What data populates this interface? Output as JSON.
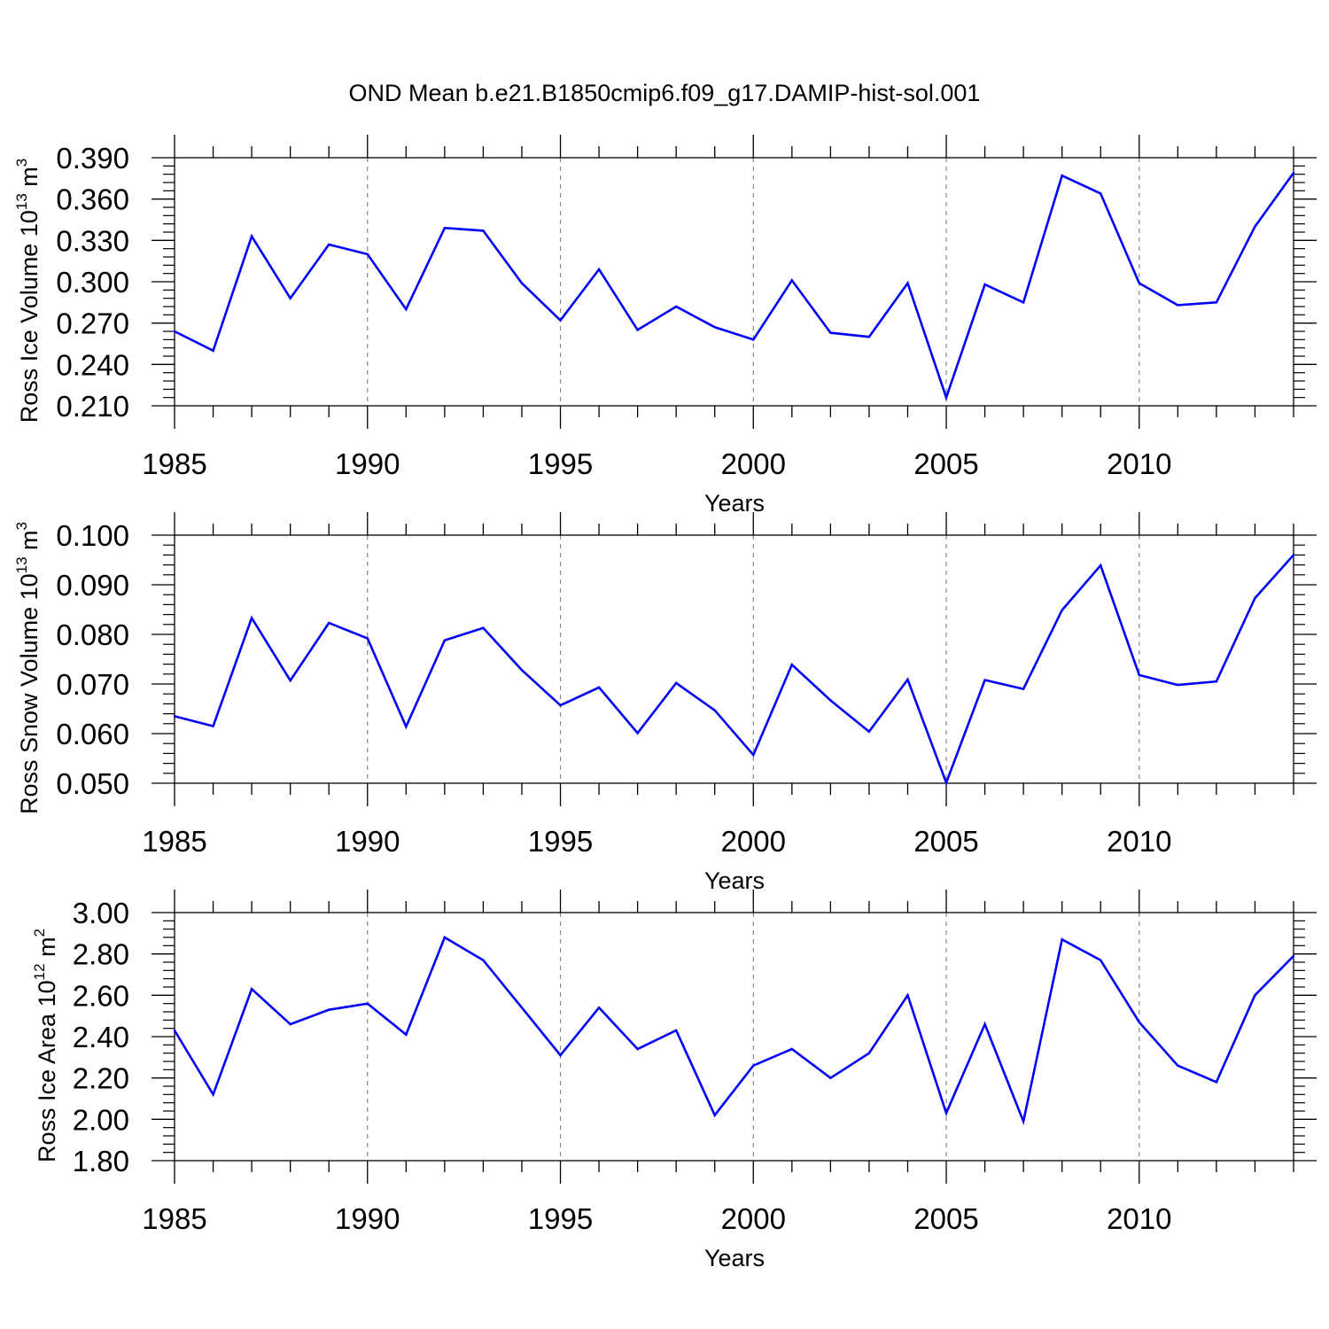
{
  "title": "OND Mean b.e21.B1850cmip6.f09_g17.DAMIP-hist-sol.001",
  "chart_data": [
    {
      "type": "line",
      "title": "OND Mean b.e21.B1850cmip6.f09_g17.DAMIP-hist-sol.001",
      "xlabel": "Years",
      "ylabel": "Ross Ice Volume 10",
      "ylabel_exp": "13",
      "ylabel_unit": " m",
      "ylabel_unit_exp": "3",
      "xlim": [
        1985,
        2014
      ],
      "ylim": [
        0.21,
        0.39
      ],
      "x_ticks": [
        1985,
        1990,
        1995,
        2000,
        2005,
        2010
      ],
      "x_tick_labels": [
        "1985",
        "1990",
        "1995",
        "2000",
        "2005",
        "2010"
      ],
      "y_ticks": [
        0.21,
        0.24,
        0.27,
        0.3,
        0.33,
        0.36,
        0.39
      ],
      "y_tick_labels": [
        "0.210",
        "0.240",
        "0.270",
        "0.300",
        "0.330",
        "0.360",
        "0.390"
      ],
      "y_minor_step": 0.006,
      "grid": "vertical dashed at major x ticks",
      "line_color": "#0000ff",
      "x": [
        1985,
        1986,
        1987,
        1988,
        1989,
        1990,
        1991,
        1992,
        1993,
        1994,
        1995,
        1996,
        1997,
        1998,
        1999,
        2000,
        2001,
        2002,
        2003,
        2004,
        2005,
        2006,
        2007,
        2008,
        2009,
        2010,
        2011,
        2012,
        2013,
        2014
      ],
      "values": [
        0.264,
        0.25,
        0.333,
        0.288,
        0.327,
        0.32,
        0.28,
        0.339,
        0.337,
        0.299,
        0.272,
        0.309,
        0.265,
        0.282,
        0.267,
        0.258,
        0.301,
        0.263,
        0.26,
        0.299,
        0.216,
        0.298,
        0.285,
        0.377,
        0.364,
        0.299,
        0.283,
        0.285,
        0.34,
        0.379
      ]
    },
    {
      "type": "line",
      "xlabel": "Years",
      "ylabel": "Ross Snow Volume 10",
      "ylabel_exp": "13",
      "ylabel_unit": " m",
      "ylabel_unit_exp": "3",
      "xlim": [
        1985,
        2014
      ],
      "ylim": [
        0.05,
        0.1
      ],
      "x_ticks": [
        1985,
        1990,
        1995,
        2000,
        2005,
        2010
      ],
      "x_tick_labels": [
        "1985",
        "1990",
        "1995",
        "2000",
        "2005",
        "2010"
      ],
      "y_ticks": [
        0.05,
        0.06,
        0.07,
        0.08,
        0.09,
        0.1
      ],
      "y_tick_labels": [
        "0.050",
        "0.060",
        "0.070",
        "0.080",
        "0.090",
        "0.100"
      ],
      "y_minor_step": 0.002,
      "grid": "vertical dashed at major x ticks",
      "line_color": "#0000ff",
      "x": [
        1985,
        1986,
        1987,
        1988,
        1989,
        1990,
        1991,
        1992,
        1993,
        1994,
        1995,
        1996,
        1997,
        1998,
        1999,
        2000,
        2001,
        2002,
        2003,
        2004,
        2005,
        2006,
        2007,
        2008,
        2009,
        2010,
        2011,
        2012,
        2013,
        2014
      ],
      "values": [
        0.0635,
        0.0615,
        0.0833,
        0.0707,
        0.0823,
        0.0792,
        0.0614,
        0.0788,
        0.0813,
        0.0728,
        0.0657,
        0.0693,
        0.0601,
        0.0702,
        0.0647,
        0.0557,
        0.0739,
        0.0667,
        0.0604,
        0.0709,
        0.0501,
        0.0708,
        0.069,
        0.0849,
        0.0939,
        0.0718,
        0.0698,
        0.0705,
        0.0873,
        0.096
      ]
    },
    {
      "type": "line",
      "xlabel": "Years",
      "ylabel": "Ross Ice Area 10",
      "ylabel_exp": "12",
      "ylabel_unit": " m",
      "ylabel_unit_exp": "2",
      "xlim": [
        1985,
        2014
      ],
      "ylim": [
        1.8,
        3.0
      ],
      "x_ticks": [
        1985,
        1990,
        1995,
        2000,
        2005,
        2010
      ],
      "x_tick_labels": [
        "1985",
        "1990",
        "1995",
        "2000",
        "2005",
        "2010"
      ],
      "y_ticks": [
        1.8,
        2.0,
        2.2,
        2.4,
        2.6,
        2.8,
        3.0
      ],
      "y_tick_labels": [
        "1.80",
        "2.00",
        "2.20",
        "2.40",
        "2.60",
        "2.80",
        "3.00"
      ],
      "y_minor_step": 0.04,
      "grid": "vertical dashed at major x ticks",
      "line_color": "#0000ff",
      "x": [
        1985,
        1986,
        1987,
        1988,
        1989,
        1990,
        1991,
        1992,
        1993,
        1994,
        1995,
        1996,
        1997,
        1998,
        1999,
        2000,
        2001,
        2002,
        2003,
        2004,
        2005,
        2006,
        2007,
        2008,
        2009,
        2010,
        2011,
        2012,
        2013,
        2014
      ],
      "values": [
        2.43,
        2.12,
        2.63,
        2.46,
        2.53,
        2.56,
        2.41,
        2.88,
        2.77,
        2.54,
        2.31,
        2.54,
        2.34,
        2.43,
        2.02,
        2.26,
        2.34,
        2.2,
        2.32,
        2.6,
        2.03,
        2.46,
        1.99,
        2.87,
        2.77,
        2.47,
        2.26,
        2.18,
        2.6,
        2.79
      ]
    }
  ]
}
